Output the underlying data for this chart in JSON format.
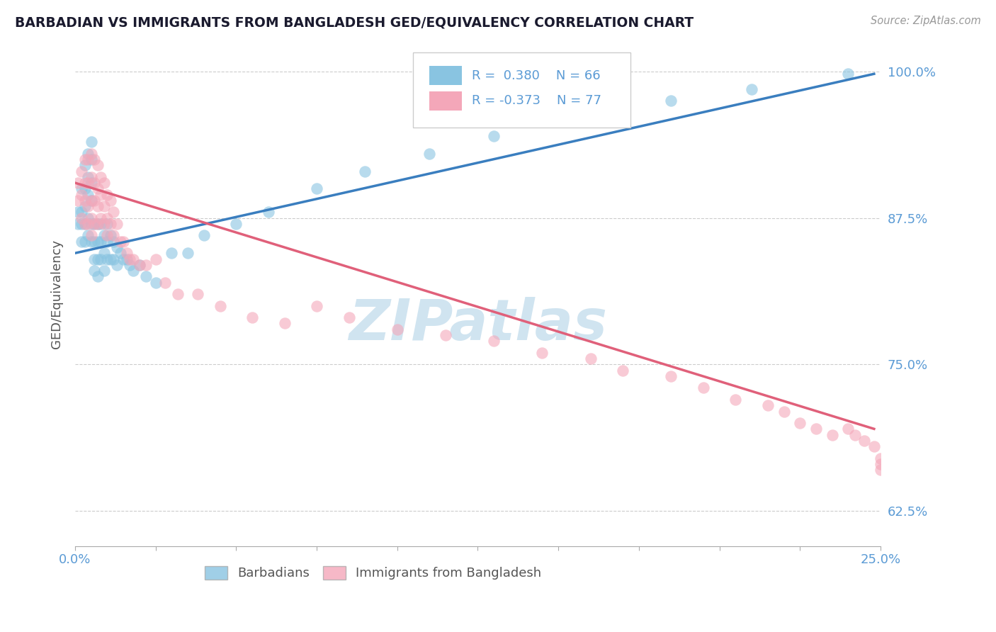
{
  "title": "BARBADIAN VS IMMIGRANTS FROM BANGLADESH GED/EQUIVALENCY CORRELATION CHART",
  "source": "Source: ZipAtlas.com",
  "ylabel": "GED/Equivalency",
  "x_min": 0.0,
  "x_max": 0.25,
  "y_min": 0.595,
  "y_max": 1.025,
  "y_ticks": [
    0.625,
    0.75,
    0.875,
    1.0
  ],
  "y_tick_labels": [
    "62.5%",
    "75.0%",
    "87.5%",
    "100.0%"
  ],
  "blue_R": 0.38,
  "blue_N": 66,
  "pink_R": -0.373,
  "pink_N": 77,
  "blue_color": "#89c4e1",
  "pink_color": "#f4a7b9",
  "blue_line_color": "#3a7ebf",
  "pink_line_color": "#e0607a",
  "legend_blue_label": "Barbadians",
  "legend_pink_label": "Immigrants from Bangladesh",
  "watermark": "ZIPatlas",
  "blue_scatter_x": [
    0.001,
    0.001,
    0.002,
    0.002,
    0.002,
    0.002,
    0.003,
    0.003,
    0.003,
    0.003,
    0.003,
    0.004,
    0.004,
    0.004,
    0.004,
    0.004,
    0.005,
    0.005,
    0.005,
    0.005,
    0.005,
    0.005,
    0.006,
    0.006,
    0.006,
    0.006,
    0.007,
    0.007,
    0.007,
    0.007,
    0.008,
    0.008,
    0.008,
    0.009,
    0.009,
    0.009,
    0.01,
    0.01,
    0.01,
    0.011,
    0.011,
    0.012,
    0.012,
    0.013,
    0.013,
    0.014,
    0.015,
    0.016,
    0.017,
    0.018,
    0.02,
    0.022,
    0.025,
    0.03,
    0.035,
    0.04,
    0.05,
    0.06,
    0.075,
    0.09,
    0.11,
    0.13,
    0.16,
    0.185,
    0.21,
    0.24
  ],
  "blue_scatter_y": [
    0.88,
    0.87,
    0.9,
    0.88,
    0.87,
    0.855,
    0.92,
    0.9,
    0.885,
    0.87,
    0.855,
    0.93,
    0.91,
    0.895,
    0.875,
    0.86,
    0.94,
    0.925,
    0.905,
    0.89,
    0.87,
    0.855,
    0.87,
    0.855,
    0.84,
    0.83,
    0.87,
    0.855,
    0.84,
    0.825,
    0.87,
    0.855,
    0.84,
    0.86,
    0.845,
    0.83,
    0.87,
    0.855,
    0.84,
    0.86,
    0.84,
    0.855,
    0.84,
    0.85,
    0.835,
    0.845,
    0.84,
    0.84,
    0.835,
    0.83,
    0.835,
    0.825,
    0.82,
    0.845,
    0.845,
    0.86,
    0.87,
    0.88,
    0.9,
    0.915,
    0.93,
    0.945,
    0.96,
    0.975,
    0.985,
    0.998
  ],
  "pink_scatter_x": [
    0.001,
    0.001,
    0.002,
    0.002,
    0.002,
    0.003,
    0.003,
    0.003,
    0.003,
    0.004,
    0.004,
    0.004,
    0.004,
    0.005,
    0.005,
    0.005,
    0.005,
    0.005,
    0.006,
    0.006,
    0.006,
    0.006,
    0.007,
    0.007,
    0.007,
    0.007,
    0.008,
    0.008,
    0.008,
    0.009,
    0.009,
    0.009,
    0.01,
    0.01,
    0.01,
    0.011,
    0.011,
    0.012,
    0.012,
    0.013,
    0.014,
    0.015,
    0.016,
    0.017,
    0.018,
    0.02,
    0.022,
    0.025,
    0.028,
    0.032,
    0.038,
    0.045,
    0.055,
    0.065,
    0.075,
    0.085,
    0.1,
    0.115,
    0.13,
    0.145,
    0.16,
    0.17,
    0.185,
    0.195,
    0.205,
    0.215,
    0.22,
    0.225,
    0.23,
    0.235,
    0.24,
    0.242,
    0.245,
    0.248,
    0.25,
    0.25,
    0.25
  ],
  "pink_scatter_y": [
    0.905,
    0.89,
    0.915,
    0.895,
    0.875,
    0.925,
    0.905,
    0.89,
    0.87,
    0.925,
    0.905,
    0.885,
    0.87,
    0.93,
    0.91,
    0.89,
    0.875,
    0.86,
    0.925,
    0.905,
    0.89,
    0.87,
    0.92,
    0.9,
    0.885,
    0.87,
    0.91,
    0.895,
    0.875,
    0.905,
    0.885,
    0.87,
    0.895,
    0.875,
    0.86,
    0.89,
    0.87,
    0.88,
    0.86,
    0.87,
    0.855,
    0.855,
    0.845,
    0.84,
    0.84,
    0.835,
    0.835,
    0.84,
    0.82,
    0.81,
    0.81,
    0.8,
    0.79,
    0.785,
    0.8,
    0.79,
    0.78,
    0.775,
    0.77,
    0.76,
    0.755,
    0.745,
    0.74,
    0.73,
    0.72,
    0.715,
    0.71,
    0.7,
    0.695,
    0.69,
    0.695,
    0.69,
    0.685,
    0.68,
    0.67,
    0.665,
    0.66
  ],
  "blue_line_x": [
    0.0,
    0.248
  ],
  "blue_line_y": [
    0.845,
    0.998
  ],
  "pink_line_x": [
    0.0,
    0.248
  ],
  "pink_line_y": [
    0.905,
    0.695
  ],
  "grid_color": "#cccccc",
  "background_color": "#ffffff",
  "title_color": "#1a1a2e",
  "axis_tick_color": "#5b9bd5",
  "watermark_color": "#d0e4f0"
}
